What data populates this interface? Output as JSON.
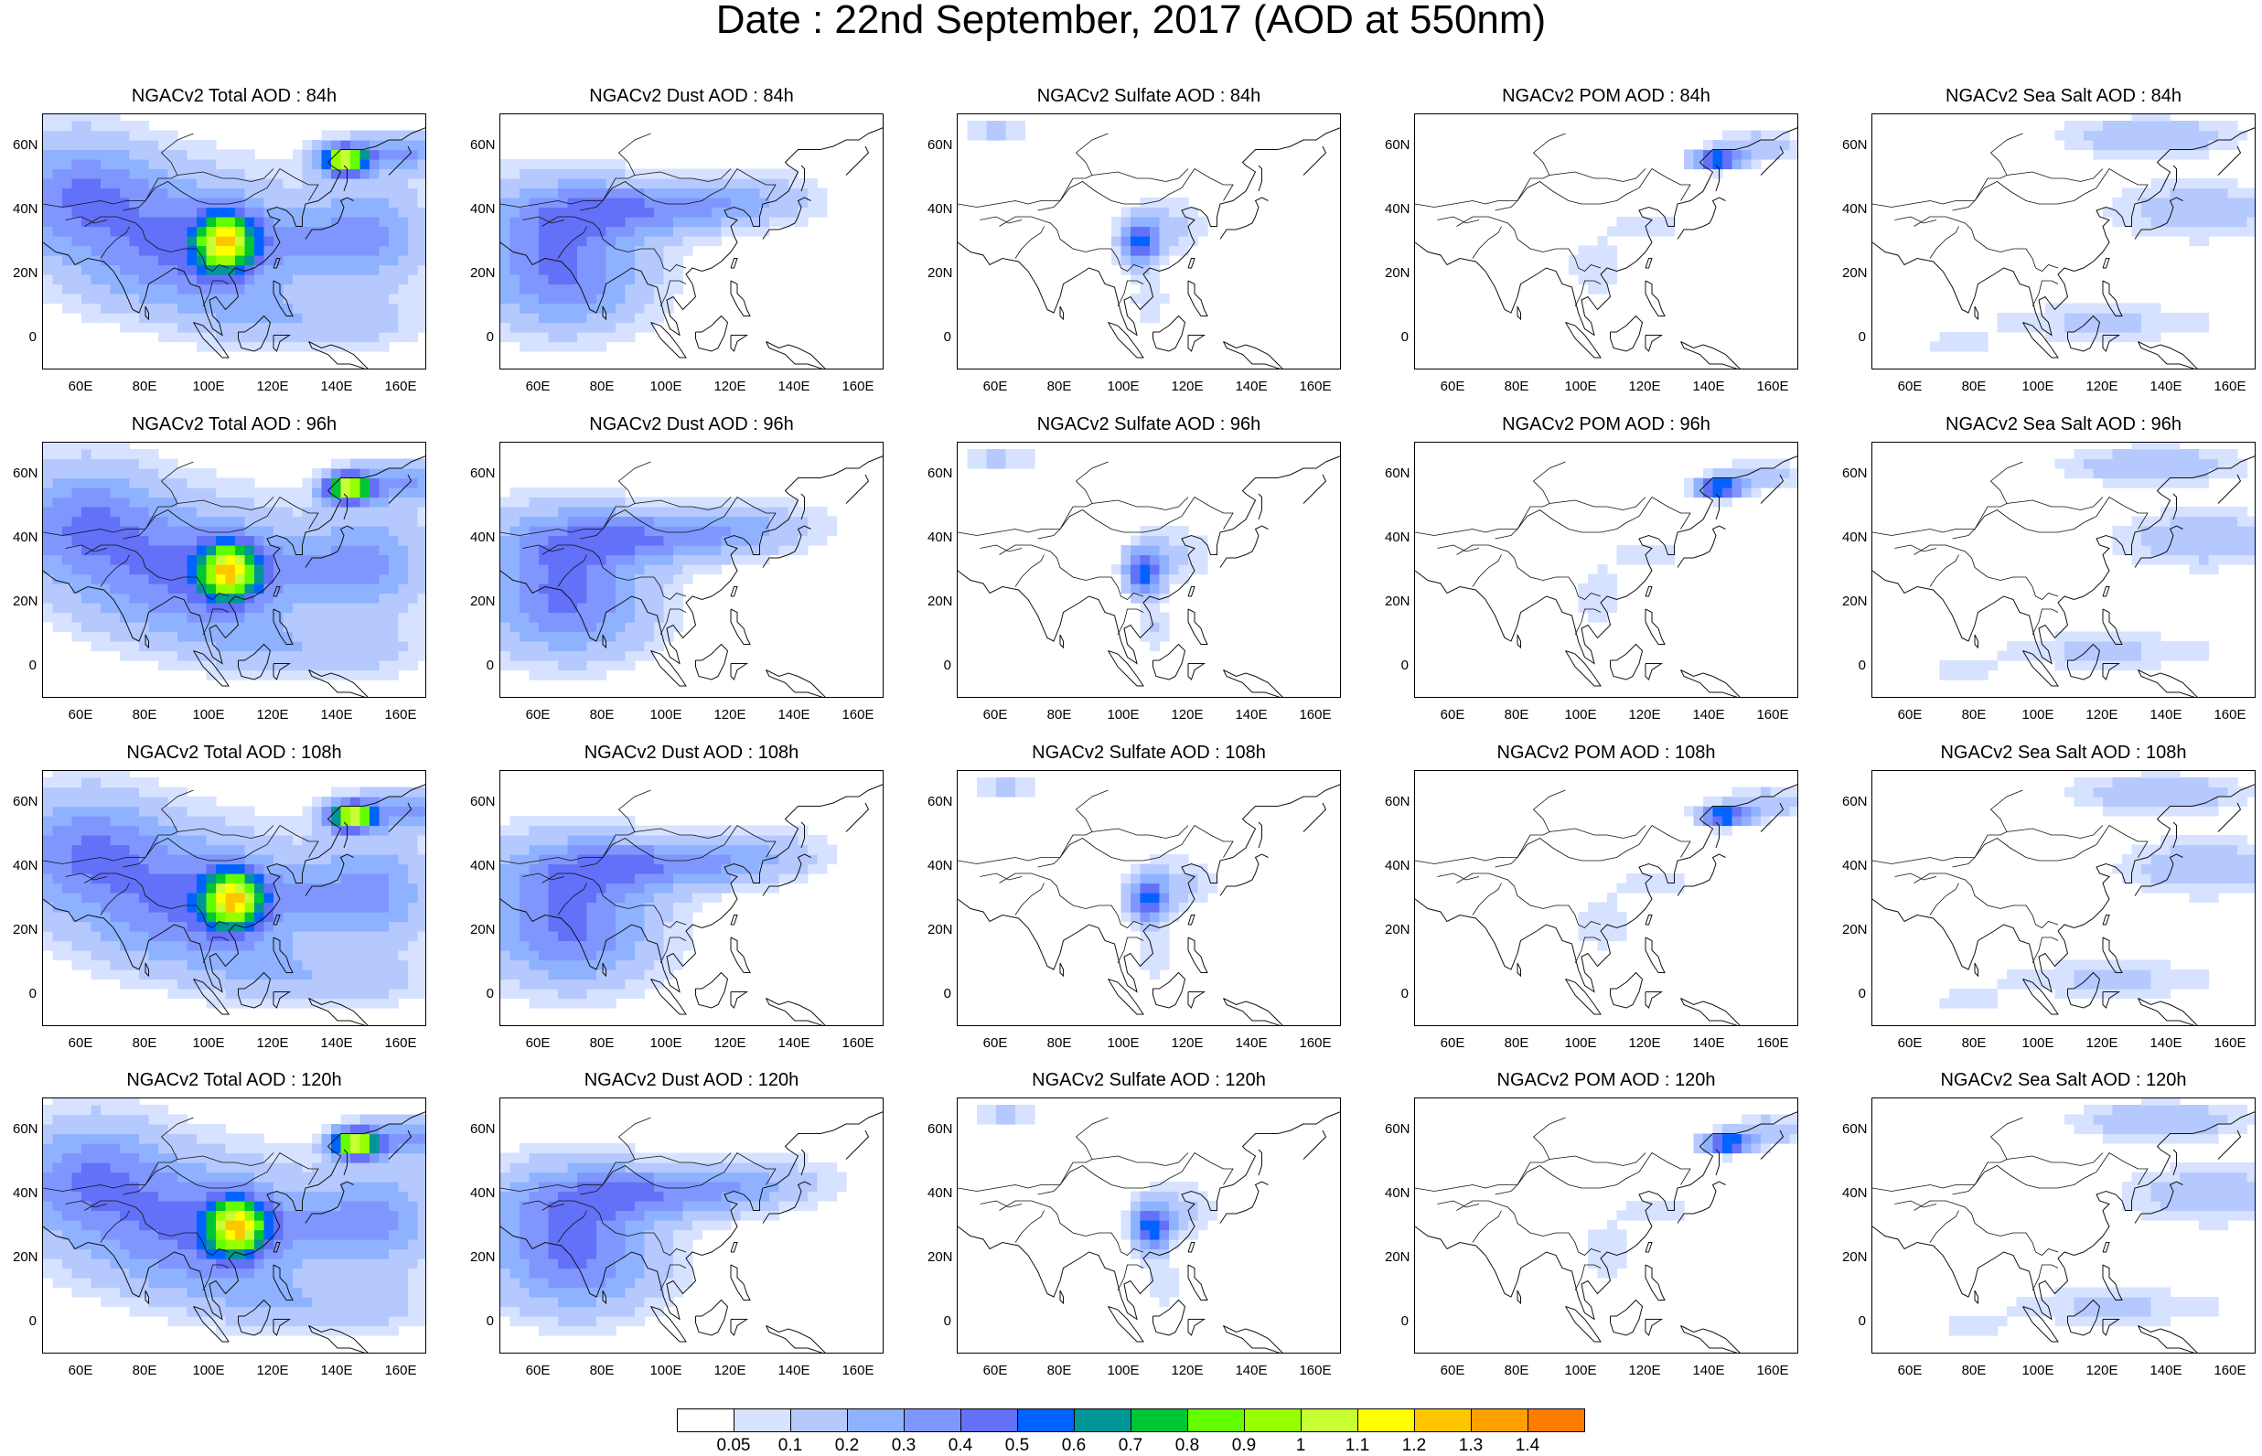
{
  "title": "Date : 22nd September, 2017 (AOD at 550nm)",
  "lon_ticks": [
    "60E",
    "80E",
    "100E",
    "120E",
    "140E",
    "160E"
  ],
  "lat_ticks": [
    "60N",
    "40N",
    "20N",
    "0"
  ],
  "panels": [
    [
      {
        "title": "NGACv2 Total AOD : 84h",
        "species": "total",
        "hour": "84h"
      },
      {
        "title": "NGACv2 Dust AOD : 84h",
        "species": "dust",
        "hour": "84h"
      },
      {
        "title": "NGACv2 Sulfate AOD : 84h",
        "species": "sulfate",
        "hour": "84h"
      },
      {
        "title": "NGACv2 POM AOD : 84h",
        "species": "pom",
        "hour": "84h"
      },
      {
        "title": "NGACv2 Sea Salt AOD : 84h",
        "species": "seasalt",
        "hour": "84h"
      }
    ],
    [
      {
        "title": "NGACv2 Total AOD : 96h",
        "species": "total",
        "hour": "96h"
      },
      {
        "title": "NGACv2 Dust AOD : 96h",
        "species": "dust",
        "hour": "96h"
      },
      {
        "title": "NGACv2 Sulfate AOD : 96h",
        "species": "sulfate",
        "hour": "96h"
      },
      {
        "title": "NGACv2 POM AOD : 96h",
        "species": "pom",
        "hour": "96h"
      },
      {
        "title": "NGACv2 Sea Salt AOD : 96h",
        "species": "seasalt",
        "hour": "96h"
      }
    ],
    [
      {
        "title": "NGACv2 Total AOD : 108h",
        "species": "total",
        "hour": "108h"
      },
      {
        "title": "NGACv2 Dust AOD : 108h",
        "species": "dust",
        "hour": "108h"
      },
      {
        "title": "NGACv2 Sulfate AOD : 108h",
        "species": "sulfate",
        "hour": "108h"
      },
      {
        "title": "NGACv2 POM AOD : 108h",
        "species": "pom",
        "hour": "108h"
      },
      {
        "title": "NGACv2 Sea Salt AOD : 108h",
        "species": "seasalt",
        "hour": "108h"
      }
    ],
    [
      {
        "title": "NGACv2 Total AOD : 120h",
        "species": "total",
        "hour": "120h"
      },
      {
        "title": "NGACv2 Dust AOD : 120h",
        "species": "dust",
        "hour": "120h"
      },
      {
        "title": "NGACv2 Sulfate AOD : 120h",
        "species": "sulfate",
        "hour": "120h"
      },
      {
        "title": "NGACv2 POM AOD : 120h",
        "species": "pom",
        "hour": "120h"
      },
      {
        "title": "NGACv2 Sea Salt  AOD : 120h",
        "species": "seasalt",
        "hour": "120h"
      }
    ]
  ],
  "colorbar": {
    "labels": [
      "0.05",
      "0.1",
      "0.2",
      "0.3",
      "0.4",
      "0.5",
      "0.6",
      "0.7",
      "0.8",
      "0.9",
      "1",
      "1.1",
      "1.2",
      "1.3",
      "1.4"
    ],
    "colors": [
      "#ffffff",
      "#d6e2ff",
      "#b5c9ff",
      "#8eb2ff",
      "#7f96ff",
      "#6370f8",
      "#0063ff",
      "#009696",
      "#00c633",
      "#63ff00",
      "#96ff00",
      "#c6ff33",
      "#ffff00",
      "#ffc600",
      "#ffa000",
      "#ff7c00",
      "#ff1900"
    ]
  }
}
